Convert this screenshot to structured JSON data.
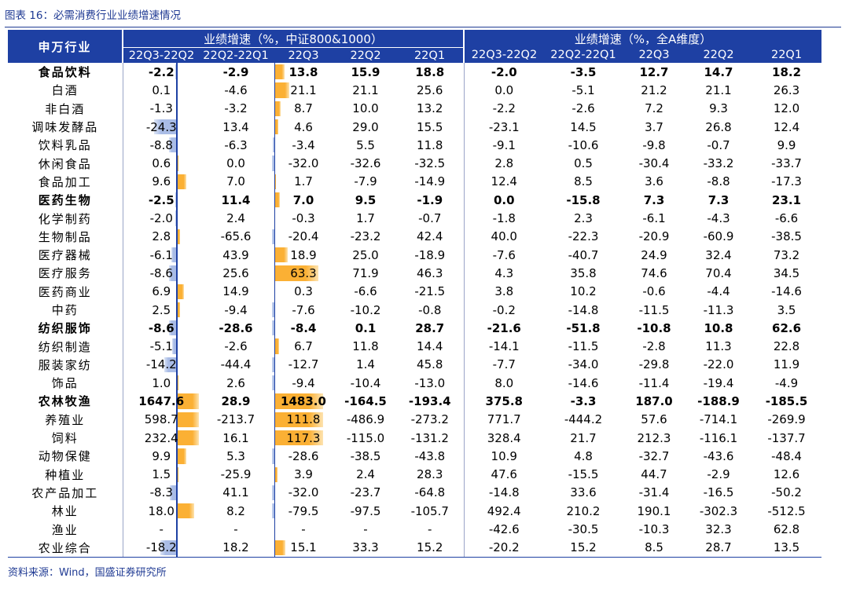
{
  "figure_title": "图表 16：必需消费行业业绩增速情况",
  "source": "资料来源：Wind，国盛证券研究所",
  "header": {
    "industry": "申万行业",
    "group_a": "业绩增速（%，中证800&1000）",
    "group_b": "业绩增速（%，全A维度）",
    "subcols": [
      "22Q3-22Q2",
      "22Q2-22Q1",
      "22Q3",
      "22Q2",
      "22Q1"
    ]
  },
  "colors": {
    "header_bg": "#1e40a3",
    "bar_orange": "#fbb034",
    "bar_blue": "#a9bce6"
  },
  "rows": [
    {
      "name": "食品饮料",
      "bold": true,
      "a": [
        "-2.2",
        "-2.9",
        "13.8",
        "15.9",
        "18.8"
      ],
      "b": [
        "-2.0",
        "-3.5",
        "12.7",
        "14.7",
        "18.2"
      ]
    },
    {
      "name": "白酒",
      "bold": false,
      "a": [
        "0.1",
        "-4.6",
        "21.1",
        "21.1",
        "25.6"
      ],
      "b": [
        "0.0",
        "-5.1",
        "21.2",
        "21.1",
        "26.3"
      ]
    },
    {
      "name": "非白酒",
      "bold": false,
      "a": [
        "-1.3",
        "-3.2",
        "8.7",
        "10.0",
        "13.2"
      ],
      "b": [
        "-2.2",
        "-2.6",
        "7.2",
        "9.3",
        "12.0"
      ]
    },
    {
      "name": "调味发酵品",
      "bold": false,
      "a": [
        "-24.3",
        "13.4",
        "4.6",
        "29.0",
        "15.5"
      ],
      "b": [
        "-23.1",
        "14.5",
        "3.7",
        "26.8",
        "12.4"
      ]
    },
    {
      "name": "饮料乳品",
      "bold": false,
      "a": [
        "-8.8",
        "-6.3",
        "-3.4",
        "5.5",
        "11.8"
      ],
      "b": [
        "-9.1",
        "-10.6",
        "-9.8",
        "-0.7",
        "9.9"
      ]
    },
    {
      "name": "休闲食品",
      "bold": false,
      "a": [
        "0.6",
        "0.0",
        "-32.0",
        "-32.6",
        "-32.5"
      ],
      "b": [
        "2.8",
        "0.5",
        "-30.4",
        "-33.2",
        "-33.7"
      ]
    },
    {
      "name": "食品加工",
      "bold": false,
      "a": [
        "9.6",
        "7.0",
        "1.7",
        "-7.9",
        "-14.9"
      ],
      "b": [
        "12.4",
        "8.5",
        "3.6",
        "-8.8",
        "-17.3"
      ]
    },
    {
      "name": "医药生物",
      "bold": true,
      "a": [
        "-2.5",
        "11.4",
        "7.0",
        "9.5",
        "-1.9"
      ],
      "b": [
        "0.0",
        "-15.8",
        "7.3",
        "7.3",
        "23.1"
      ]
    },
    {
      "name": "化学制药",
      "bold": false,
      "a": [
        "-2.0",
        "2.4",
        "-0.3",
        "1.7",
        "-0.7"
      ],
      "b": [
        "-1.8",
        "2.3",
        "-6.1",
        "-4.3",
        "-6.6"
      ]
    },
    {
      "name": "生物制品",
      "bold": false,
      "a": [
        "2.8",
        "-65.6",
        "-20.4",
        "-23.2",
        "42.4"
      ],
      "b": [
        "40.0",
        "-22.3",
        "-20.9",
        "-60.9",
        "-38.5"
      ]
    },
    {
      "name": "医疗器械",
      "bold": false,
      "a": [
        "-6.1",
        "43.9",
        "18.9",
        "25.0",
        "-18.9"
      ],
      "b": [
        "-7.6",
        "-40.7",
        "24.9",
        "32.4",
        "73.2"
      ]
    },
    {
      "name": "医疗服务",
      "bold": false,
      "a": [
        "-8.6",
        "25.6",
        "63.3",
        "71.9",
        "46.3"
      ],
      "b": [
        "4.3",
        "35.8",
        "74.6",
        "70.4",
        "34.5"
      ]
    },
    {
      "name": "医药商业",
      "bold": false,
      "a": [
        "6.9",
        "14.9",
        "0.3",
        "-6.6",
        "-21.5"
      ],
      "b": [
        "3.8",
        "10.2",
        "-0.6",
        "-4.4",
        "-14.6"
      ]
    },
    {
      "name": "中药",
      "bold": false,
      "a": [
        "2.5",
        "-9.4",
        "-7.6",
        "-10.2",
        "-0.8"
      ],
      "b": [
        "-0.2",
        "-14.8",
        "-11.5",
        "-11.3",
        "3.5"
      ]
    },
    {
      "name": "纺织服饰",
      "bold": true,
      "a": [
        "-8.6",
        "-28.6",
        "-8.4",
        "0.1",
        "28.7"
      ],
      "b": [
        "-21.6",
        "-51.8",
        "-10.8",
        "10.8",
        "62.6"
      ]
    },
    {
      "name": "纺织制造",
      "bold": false,
      "a": [
        "-5.1",
        "-2.6",
        "6.7",
        "11.8",
        "14.4"
      ],
      "b": [
        "-14.1",
        "-11.5",
        "-2.8",
        "11.3",
        "22.8"
      ]
    },
    {
      "name": "服装家纺",
      "bold": false,
      "a": [
        "-14.2",
        "-44.4",
        "-12.7",
        "1.4",
        "45.8"
      ],
      "b": [
        "-7.7",
        "-34.0",
        "-29.8",
        "-22.0",
        "11.9"
      ]
    },
    {
      "name": "饰品",
      "bold": false,
      "a": [
        "1.0",
        "2.6",
        "-9.4",
        "-10.4",
        "-13.0"
      ],
      "b": [
        "8.0",
        "-14.6",
        "-11.4",
        "-19.4",
        "-4.9"
      ]
    },
    {
      "name": "农林牧渔",
      "bold": true,
      "a": [
        "1647.6",
        "28.9",
        "1483.0",
        "-164.5",
        "-193.4"
      ],
      "b": [
        "375.8",
        "-3.3",
        "187.0",
        "-188.9",
        "-185.5"
      ]
    },
    {
      "name": "养殖业",
      "bold": false,
      "a": [
        "598.7",
        "-213.7",
        "111.8",
        "-486.9",
        "-273.2"
      ],
      "b": [
        "771.7",
        "-444.2",
        "57.6",
        "-714.1",
        "-269.9"
      ]
    },
    {
      "name": "饲料",
      "bold": false,
      "a": [
        "232.4",
        "16.1",
        "117.3",
        "-115.0",
        "-131.2"
      ],
      "b": [
        "328.4",
        "21.7",
        "212.3",
        "-116.1",
        "-137.7"
      ]
    },
    {
      "name": "动物保健",
      "bold": false,
      "a": [
        "9.9",
        "5.3",
        "-28.6",
        "-38.5",
        "-43.8"
      ],
      "b": [
        "10.9",
        "4.8",
        "-32.7",
        "-43.6",
        "-48.4"
      ]
    },
    {
      "name": "种植业",
      "bold": false,
      "a": [
        "1.5",
        "-25.9",
        "3.9",
        "2.4",
        "28.3"
      ],
      "b": [
        "47.6",
        "-15.5",
        "44.7",
        "-2.9",
        "12.6"
      ]
    },
    {
      "name": "农产品加工",
      "bold": false,
      "a": [
        "-8.3",
        "41.1",
        "-32.0",
        "-23.7",
        "-64.8"
      ],
      "b": [
        "-14.8",
        "33.6",
        "-31.4",
        "-16.5",
        "-50.2"
      ]
    },
    {
      "name": "林业",
      "bold": false,
      "a": [
        "18.0",
        "8.2",
        "-79.5",
        "-97.5",
        "-105.7"
      ],
      "b": [
        "492.4",
        "210.2",
        "190.1",
        "-302.3",
        "-512.5"
      ]
    },
    {
      "name": "渔业",
      "bold": false,
      "a": [
        "-",
        "-",
        "-",
        "-",
        "-"
      ],
      "b": [
        "-42.6",
        "-30.5",
        "-10.3",
        "32.3",
        "62.8"
      ]
    },
    {
      "name": "农业综合",
      "bold": false,
      "a": [
        "-18.2",
        "18.2",
        "15.1",
        "33.3",
        "15.2"
      ],
      "b": [
        "-20.2",
        "15.2",
        "8.5",
        "28.7",
        "13.5"
      ]
    }
  ]
}
